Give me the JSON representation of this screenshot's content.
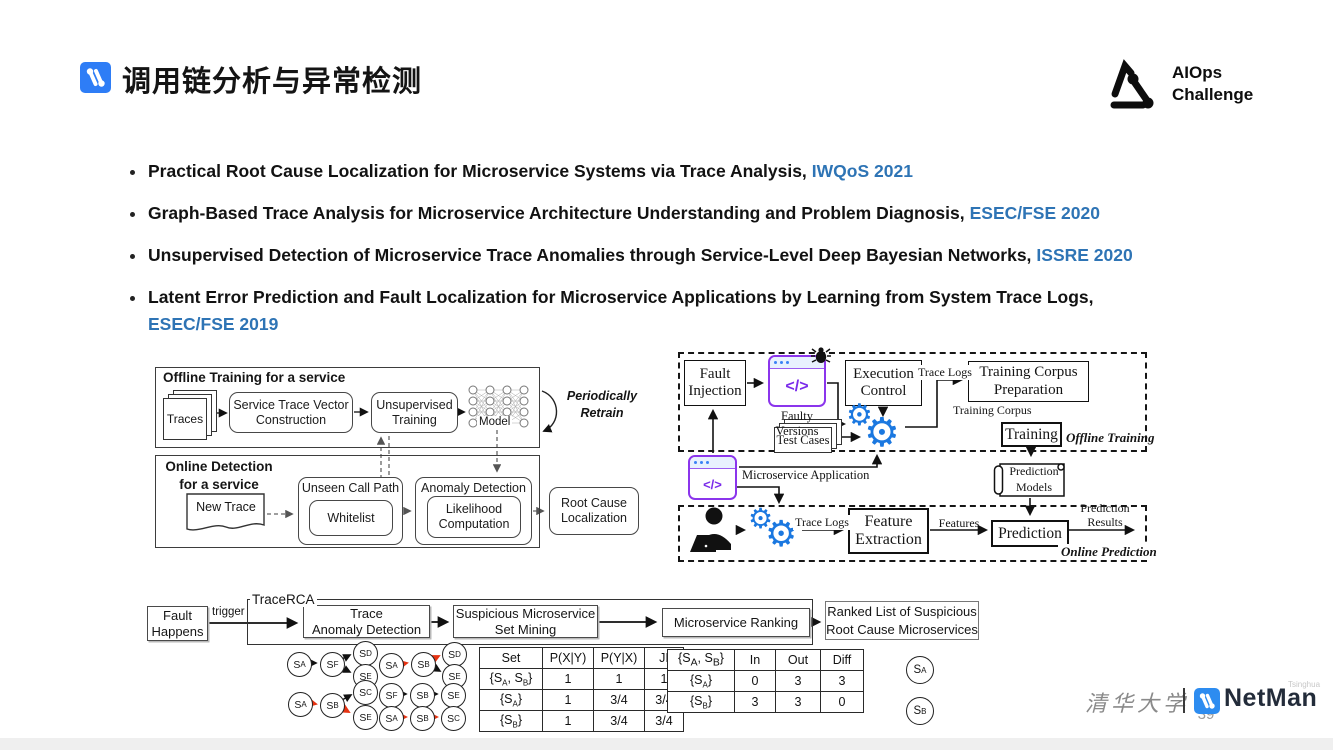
{
  "page": {
    "title": "调用链分析与异常检测",
    "page_number": "39"
  },
  "aiops": {
    "line1": "AIOps",
    "line2": "Challenge"
  },
  "colors": {
    "link_blue": "#2E74B5",
    "gear_blue": "#1b78e0",
    "logo_blue": "#2e7df6",
    "anomaly_red": "#e63312"
  },
  "bullets": [
    {
      "text": "Practical Root Cause Localization for Microservice Systems via Trace Analysis,",
      "venue": "IWQoS 2021"
    },
    {
      "text": "Graph-Based Trace Analysis for Microservice Architecture Understanding and Problem Diagnosis,",
      "venue": "ESEC/FSE 2020"
    },
    {
      "text": "Unsupervised Detection of Microservice Trace Anomalies through Service-Level Deep Bayesian Networks,",
      "venue": "ISSRE 2020"
    },
    {
      "text": "Latent Error Prediction and Fault Localization for Microservice Applications by Learning from System Trace Logs,",
      "venue": "ESEC/FSE 2019"
    }
  ],
  "left_diagram": {
    "offline_title": "Offline Training for a service",
    "traces_label": "Traces",
    "stvc": "Service Trace Vector\nConstruction",
    "unsup": "Unsupervised\nTraining",
    "model_label": "Model",
    "retrain": "Periodically\nRetrain",
    "online_title": "Online Detection\nfor a service",
    "new_trace": "New Trace",
    "unseen": "Unseen Call Path",
    "whitelist": "Whitelist",
    "anomaly": "Anomaly Detection",
    "likelihood": "Likelihood\nComputation",
    "root_cause": "Root Cause\nLocalization"
  },
  "right_diagram": {
    "fault_injection": "Fault\nInjection",
    "code_glyph": "</>",
    "faulty_versions": "Faulty Versions",
    "execution_control": "Execution\nControl",
    "trace_logs_top": "Trace Logs",
    "tcp": "Training Corpus\nPreparation",
    "training_corpus": "Training Corpus",
    "training": "Training",
    "offline_label": "Offline Training",
    "test_cases": "Test Cases",
    "microservice_app": "Microservice Application",
    "prediction_models": "Prediction\nModels",
    "trace_logs_bottom": "Trace Logs",
    "feature_extraction": "Feature\nExtraction",
    "features": "Features",
    "prediction": "Prediction",
    "prediction_results": "Prediction\nResults",
    "online_label": "Online Prediction"
  },
  "bottom_flow": {
    "fault_happens": "Fault\nHappens",
    "trigger": "trigger",
    "tracerca": "TraceRCA",
    "tad": "Trace\nAnomaly Detection",
    "smsm": "Suspicious Microservice\nSet Mining",
    "ranking": "Microservice Ranking",
    "ranked_list": "Ranked List of Suspicious\nRoot Cause Microservices"
  },
  "graphs": {
    "g1": {
      "n0": "S_A",
      "n1": "S_F",
      "n2": "S_D",
      "n3": "S_E"
    },
    "g2": {
      "n0": "S_A",
      "n1": "S_B",
      "n2": "S_C",
      "n3": "S_E"
    },
    "g3": {
      "n0": "S_A",
      "n1": "S_B",
      "n2": "S_D",
      "n3": "S_E"
    },
    "g4": {
      "n0": "S_F",
      "n1": "S_B",
      "n2": "S_E"
    },
    "g5": {
      "n0": "S_A",
      "n1": "S_B",
      "n2": "S_C"
    }
  },
  "tables": {
    "t1": {
      "headers": [
        "Set",
        "P(X|Y)",
        "P(Y|X)",
        "JI"
      ],
      "rows": [
        [
          "{S_A, S_B}",
          "1",
          "1",
          "1"
        ],
        [
          "{S_A}",
          "1",
          "3/4",
          "3/4"
        ],
        [
          "{S_B}",
          "1",
          "3/4",
          "3/4"
        ]
      ]
    },
    "t2": {
      "headers": [
        "{S_A, S_B}",
        "In",
        "Out",
        "Diff"
      ],
      "rows": [
        [
          "{S_A}",
          "0",
          "3",
          "3"
        ],
        [
          "{S_B}",
          "3",
          "3",
          "0"
        ]
      ]
    }
  },
  "outputs": {
    "top": "S_A",
    "bottom": "S_B"
  },
  "footer": {
    "university": "清华大学",
    "brand": "NetMan",
    "brand_sup": "Tsinghua"
  }
}
